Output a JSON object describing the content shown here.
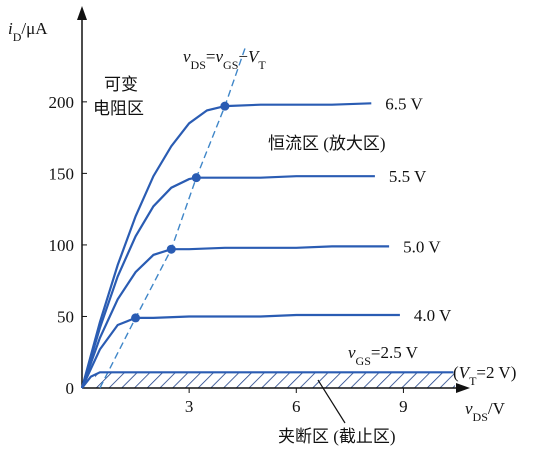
{
  "chart_data": {
    "type": "line",
    "xlim": [
      0,
      10.5
    ],
    "ylim": [
      0,
      260
    ],
    "xticks": [
      3,
      6,
      9
    ],
    "yticks": [
      0,
      50,
      100,
      150,
      200
    ],
    "color": "#2a5cb3",
    "series": [
      {
        "name": "6.5 V",
        "x": [
          0,
          0.5,
          1,
          1.5,
          2,
          2.5,
          3,
          3.5,
          4,
          5,
          6,
          7,
          8.1
        ],
        "values": [
          0,
          46,
          86,
          120,
          148,
          169,
          185,
          194,
          197,
          198,
          198,
          198,
          199
        ]
      },
      {
        "name": "5.5 V",
        "x": [
          0,
          0.5,
          1,
          1.5,
          2,
          2.5,
          3,
          3.2,
          4,
          5,
          6,
          7,
          8.2
        ],
        "values": [
          0,
          42,
          78,
          106,
          127,
          140,
          146,
          147,
          147,
          147,
          148,
          148,
          148
        ]
      },
      {
        "name": "5.0 V",
        "x": [
          0,
          0.5,
          1,
          1.5,
          2,
          2.5,
          3,
          4,
          5,
          6,
          7,
          8.6
        ],
        "values": [
          0,
          35,
          62,
          81,
          93,
          97,
          97,
          98,
          98,
          98,
          99,
          99
        ]
      },
      {
        "name": "4.0 V",
        "x": [
          0,
          0.5,
          1,
          1.5,
          2,
          3,
          4,
          5,
          6,
          7,
          8.9
        ],
        "values": [
          0,
          27,
          44,
          49,
          49,
          50,
          50,
          50,
          51,
          51,
          51
        ]
      },
      {
        "x": [
          0,
          0.25,
          0.5,
          10.4
        ],
        "values": [
          0,
          8,
          11,
          11
        ]
      }
    ],
    "boundary": {
      "x": [
        0.5,
        1.5,
        2.5,
        3.2,
        4,
        4.6
      ],
      "values": [
        0,
        49,
        97,
        147,
        197,
        240
      ],
      "color": "#3f86c8"
    },
    "knees": {
      "x": [
        1.5,
        2.5,
        3.2,
        4
      ],
      "values": [
        49,
        97,
        147,
        197
      ]
    },
    "annotations": [
      {
        "parts": [
          {
            "text": "i",
            "style": "var"
          },
          {
            "text": "D",
            "style": "sub"
          },
          {
            "text": "/μA",
            "style": "plain"
          }
        ]
      },
      {
        "parts": [
          {
            "text": "v",
            "style": "var"
          },
          {
            "text": "DS",
            "style": "sub"
          },
          {
            "text": "/V",
            "style": "plain"
          }
        ]
      },
      {
        "parts": [
          {
            "text": "v",
            "style": "var"
          },
          {
            "text": "DS",
            "style": "sub"
          },
          {
            "text": "=",
            "style": "plain"
          },
          {
            "text": "v",
            "style": "var"
          },
          {
            "text": "GS",
            "style": "sub"
          },
          {
            "text": "−",
            "style": "plain"
          },
          {
            "text": "V",
            "style": "var"
          },
          {
            "text": "T",
            "style": "sub"
          }
        ]
      },
      {
        "parts": [
          {
            "text": "可变",
            "style": "plain"
          }
        ]
      },
      {
        "parts": [
          {
            "text": "电阻区",
            "style": "plain"
          }
        ]
      },
      {
        "parts": [
          {
            "text": "恒流区 (放大区)",
            "style": "plain"
          }
        ]
      },
      {
        "parts": [
          {
            "text": "夹断区 (截止区)",
            "style": "plain"
          }
        ]
      },
      {
        "parts": [
          {
            "text": "v",
            "style": "var"
          },
          {
            "text": "GS",
            "style": "sub"
          },
          {
            "text": "=2.5 V",
            "style": "plain"
          }
        ]
      },
      {
        "parts": [
          {
            "text": "(",
            "style": "plain"
          },
          {
            "text": "V",
            "style": "var"
          },
          {
            "text": "T",
            "style": "sub"
          },
          {
            "text": "=2 V)",
            "style": "plain"
          }
        ]
      }
    ]
  }
}
